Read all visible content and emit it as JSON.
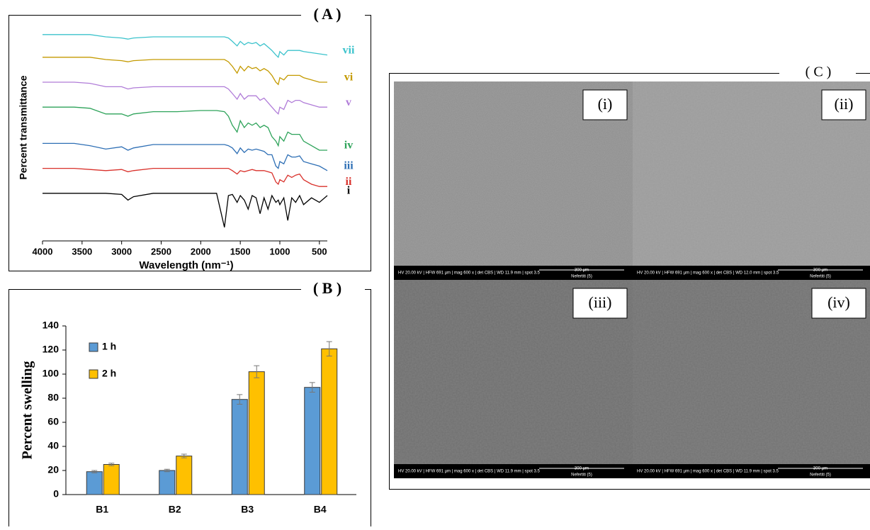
{
  "chart_data": [
    {
      "type": "line",
      "panel": "( A )",
      "xlabel": "Wavelength (nm⁻¹)",
      "ylabel": "Percent transmittance",
      "xlim": [
        4000,
        400
      ],
      "ylim": [
        0,
        100
      ],
      "xticks": [
        4000,
        3500,
        3000,
        2500,
        2000,
        1500,
        1000,
        500
      ],
      "x": [
        4000,
        3600,
        3400,
        3200,
        3000,
        2920,
        2850,
        2600,
        2300,
        2000,
        1800,
        1700,
        1650,
        1600,
        1540,
        1500,
        1450,
        1400,
        1350,
        1300,
        1250,
        1200,
        1150,
        1100,
        1050,
        1020,
        1000,
        950,
        900,
        850,
        800,
        750,
        700,
        600,
        500,
        400
      ],
      "series": [
        {
          "name": "i",
          "color": "#000000",
          "values": [
            21,
            21,
            21,
            21,
            20.5,
            18,
            19.5,
            21,
            21,
            21,
            21,
            6,
            20,
            20.5,
            17,
            20,
            18,
            14,
            20,
            19,
            12,
            19,
            14,
            20,
            17,
            18,
            16,
            19,
            9,
            19,
            17,
            20,
            16,
            19,
            17,
            20
          ]
        },
        {
          "name": "ii",
          "color": "#d9312b",
          "values": [
            32,
            32,
            31.5,
            31,
            31.5,
            30.5,
            31,
            32,
            32,
            32,
            32,
            32,
            32,
            31,
            29.5,
            31,
            30.5,
            31,
            31.5,
            31,
            31,
            31,
            30.5,
            30,
            26,
            25,
            27,
            26,
            29,
            28,
            29,
            29.5,
            27,
            25,
            24,
            24
          ]
        },
        {
          "name": "iii",
          "color": "#2e6fb5",
          "values": [
            43,
            43,
            42,
            40.5,
            41.5,
            40,
            41,
            42.5,
            42.5,
            42.5,
            42.5,
            42.5,
            42,
            41,
            38.5,
            41,
            39,
            40.5,
            40,
            40.5,
            40,
            39.5,
            38,
            38,
            33,
            32,
            35,
            34,
            38,
            37,
            37,
            37.5,
            35,
            34,
            33,
            31
          ]
        },
        {
          "name": "iv",
          "color": "#2ea35a",
          "values": [
            59,
            59,
            58.5,
            56,
            56,
            55,
            56,
            57,
            57,
            57.5,
            57.5,
            57,
            55,
            51,
            48,
            53,
            50,
            52,
            51,
            52,
            50,
            51,
            50,
            46,
            44,
            42,
            46,
            44,
            48,
            47,
            47,
            47,
            44,
            42,
            40,
            40
          ]
        },
        {
          "name": "v",
          "color": "#b07cd8",
          "values": [
            70,
            70,
            69.5,
            68,
            68,
            67,
            67.5,
            68,
            68,
            68,
            68,
            68,
            67,
            65,
            62.5,
            65,
            62.5,
            64,
            64,
            64,
            62,
            63,
            61,
            59,
            57,
            56,
            59,
            58,
            62,
            61,
            62,
            62,
            61,
            60,
            59,
            59
          ]
        },
        {
          "name": "vi",
          "color": "#c49a00",
          "values": [
            81,
            81,
            81,
            80,
            79.5,
            79,
            79.5,
            80,
            80,
            80,
            80,
            80,
            79,
            77,
            74,
            77,
            75,
            77,
            76,
            76.5,
            75,
            76,
            75,
            73,
            70,
            69,
            72,
            71,
            73,
            73,
            73,
            73,
            72,
            71,
            70,
            70
          ]
        },
        {
          "name": "vii",
          "color": "#3cc3cc",
          "values": [
            91,
            91,
            91,
            90,
            89.5,
            89,
            89.5,
            90,
            90,
            90,
            90,
            90,
            89.5,
            88,
            86,
            88,
            86.5,
            87.5,
            87,
            87.5,
            86,
            87,
            85.5,
            84,
            82,
            81,
            83.5,
            82,
            84,
            84,
            84,
            84,
            83.5,
            83,
            82.5,
            82
          ]
        }
      ]
    },
    {
      "type": "bar",
      "panel": "( B )",
      "ylabel": "Percent swelling",
      "categories": [
        "B1",
        "B2",
        "B3",
        "B4"
      ],
      "ylim": [
        0,
        140
      ],
      "yticks": [
        0,
        20,
        40,
        60,
        80,
        100,
        120,
        140
      ],
      "series": [
        {
          "name": "1 h",
          "color": "#5b9bd5",
          "values": [
            19,
            20,
            79,
            89
          ],
          "errors": [
            1,
            1,
            4,
            4
          ]
        },
        {
          "name": "2 h",
          "color": "#ffc000",
          "values": [
            25,
            32,
            102,
            121
          ],
          "errors": [
            1,
            1.5,
            5,
            6
          ]
        }
      ]
    }
  ],
  "sem": {
    "panel": "( C )",
    "images": [
      {
        "label": "(i)",
        "info": "HV 20.00 kV | HFW 691 µm | mag 600 x | det CBS | WD 11.9 mm | spot 3.5",
        "scale": "300 µm",
        "sample": "Nefertiti (5)"
      },
      {
        "label": "(ii)",
        "info": "HV 20.00 kV | HFW 691 µm | mag 600 x | det CBS | WD 12.0 mm | spot 3.5",
        "scale": "300 µm",
        "sample": "Nefertiti (5)"
      },
      {
        "label": "(iii)",
        "info": "HV 20.00 kV | HFW 691 µm | mag 600 x | det CBS | WD 11.9 mm | spot 3.5",
        "scale": "300 µm",
        "sample": "Nefertiti (5)"
      },
      {
        "label": "(iv)",
        "info": "HV 20.00 kV | HFW 691 µm | mag 600 x | det CBS | WD 11.9 mm | spot 3.5",
        "scale": "300 µm",
        "sample": "Nefertiti (5)"
      }
    ]
  }
}
